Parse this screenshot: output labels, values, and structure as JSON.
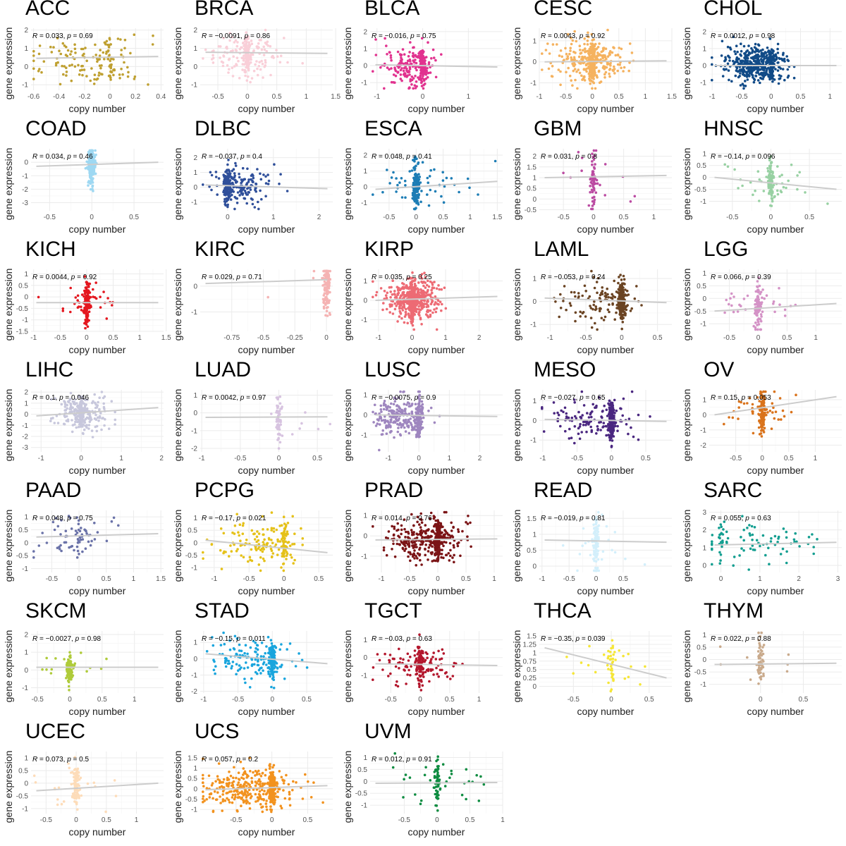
{
  "axis_labels": {
    "x": "copy number",
    "y": "gene expression"
  },
  "chart_data": [
    {
      "type": "scatter",
      "title": "ACC",
      "R": "0.033",
      "p": "0.69",
      "color": "#bfa031",
      "xlim": [
        -0.62,
        0.42
      ],
      "ylim": [
        -1.3,
        2.1
      ],
      "xticks": [
        -0.6,
        -0.4,
        -0.2,
        0.0,
        0.2,
        0.4
      ],
      "yticks": [
        -1,
        0,
        1,
        2
      ],
      "fit": [
        0.45,
        0.55
      ],
      "n": 150,
      "xmode": "spread",
      "xc": -0.2,
      "xs": 0.22,
      "ym": 0.4,
      "ys": 0.65,
      "vline": 0,
      "vfrac": 0.2
    },
    {
      "type": "scatter",
      "title": "BRCA",
      "R": "-0.0091",
      "p": "0.86",
      "color": "#f9cfd8",
      "xlim": [
        -0.8,
        1.45
      ],
      "ylim": [
        -1.3,
        2.1
      ],
      "xticks": [
        -0.5,
        0.0,
        0.5,
        1.0,
        1.5
      ],
      "yticks": [
        -1,
        0,
        1,
        2
      ],
      "fit": [
        0.78,
        0.72
      ],
      "n": 220,
      "xmode": "spread",
      "xc": 0.0,
      "xs": 0.3,
      "ym": 0.6,
      "ys": 0.55,
      "vline": 0,
      "vfrac": 0.3
    },
    {
      "type": "scatter",
      "title": "BLCA",
      "R": "-0.016",
      "p": "0.75",
      "color": "#e1338f",
      "xlim": [
        -1.15,
        1.75
      ],
      "ylim": [
        -1.45,
        2.2
      ],
      "xticks": [
        -1,
        0,
        1
      ],
      "yticks": [
        -1,
        0,
        1,
        2
      ],
      "fit": [
        0.05,
        -0.08
      ],
      "n": 260,
      "xmode": "spread",
      "xc": -0.3,
      "xs": 0.3,
      "ym": 0.0,
      "ys": 0.55,
      "vline": 0,
      "vfrac": 0.4
    },
    {
      "type": "scatter",
      "title": "CESC",
      "R": "0.0043",
      "p": "0.92",
      "color": "#f5b25f",
      "xlim": [
        -1.0,
        1.5
      ],
      "ylim": [
        -1.35,
        1.6
      ],
      "xticks": [
        -1.0,
        -0.5,
        0.0,
        0.5,
        1.0,
        1.5
      ],
      "yticks": [
        -1,
        0,
        1
      ],
      "fit": [
        0.0,
        0.05
      ],
      "n": 380,
      "xmode": "spread",
      "xc": -0.05,
      "xs": 0.35,
      "ym": 0.0,
      "ys": 0.5,
      "vline": 0,
      "vfrac": 0.3
    },
    {
      "type": "scatter",
      "title": "CHOL",
      "R": "0.0012",
      "p": "0.98",
      "color": "#104a87",
      "xlim": [
        -1.05,
        1.2
      ],
      "ylim": [
        -1.45,
        2.2
      ],
      "xticks": [
        -1.0,
        -0.5,
        0.0,
        0.5,
        1.0
      ],
      "yticks": [
        -1,
        0,
        1,
        2
      ],
      "fit": [
        0.0,
        0.0
      ],
      "n": 480,
      "xmode": "spread",
      "xc": -0.3,
      "xs": 0.28,
      "ym": 0.1,
      "ys": 0.5,
      "vline": 0,
      "vfrac": 0.2
    },
    {
      "type": "scatter",
      "title": "COAD",
      "R": "0.034",
      "p": "0.46",
      "color": "#9ed8f2",
      "xlim": [
        -0.72,
        0.85
      ],
      "ylim": [
        -3.6,
        1.0
      ],
      "xticks": [
        -0.5,
        0.0,
        0.5
      ],
      "yticks": [
        -3,
        -2,
        -1,
        0
      ],
      "fit": [
        -0.3,
        -0.0
      ],
      "n": 200,
      "xmode": "vline",
      "xc": 0,
      "xs": 0.03,
      "ym": -0.2,
      "ys": 0.7,
      "vline": 0,
      "vfrac": 0.85
    },
    {
      "type": "scatter",
      "title": "DLBC",
      "R": "-0.037",
      "p": "0.4",
      "color": "#2f4f9a",
      "xlim": [
        -0.6,
        2.3
      ],
      "ylim": [
        -1.6,
        2.6
      ],
      "xticks": [
        0,
        1,
        2
      ],
      "yticks": [
        -1,
        0,
        1,
        2
      ],
      "fit": [
        0.15,
        -0.1
      ],
      "n": 260,
      "xmode": "spread",
      "xc": 0.3,
      "xs": 0.3,
      "ym": 0.1,
      "ys": 0.6,
      "vline": 0,
      "vfrac": 0.4
    },
    {
      "type": "scatter",
      "title": "ESCA",
      "R": "0.048",
      "p": "0.41",
      "color": "#1d7db5",
      "xlim": [
        -0.85,
        1.6
      ],
      "ylim": [
        -1.5,
        2.4
      ],
      "xticks": [
        -0.5,
        0.0,
        0.5,
        1.0,
        1.5
      ],
      "yticks": [
        -1,
        0,
        1,
        2
      ],
      "fit": [
        -0.15,
        0.35
      ],
      "n": 190,
      "xmode": "vline",
      "xc": 0,
      "xs": 0.5,
      "ym": 0.1,
      "ys": 0.7,
      "vline": 0,
      "vfrac": 0.75
    },
    {
      "type": "scatter",
      "title": "GBM",
      "R": "0.031",
      "p": "0.8",
      "color": "#bb4ba2",
      "xlim": [
        -0.9,
        1.3
      ],
      "ylim": [
        -0.55,
        2.35
      ],
      "xticks": [
        -0.5,
        0.0,
        0.5,
        1.0
      ],
      "yticks": [
        -0.5,
        0.0,
        0.5,
        1.0,
        1.5,
        2.0
      ],
      "fit": [
        1.0,
        1.1
      ],
      "n": 70,
      "xmode": "vline",
      "xc": 0,
      "xs": 0.5,
      "ym": 0.9,
      "ys": 0.6,
      "vline": 0,
      "vfrac": 0.8
    },
    {
      "type": "scatter",
      "title": "HNSC",
      "R": "-0.14",
      "p": "0.096",
      "color": "#98d1a3",
      "xlim": [
        -0.8,
        0.92
      ],
      "ylim": [
        -1.4,
        1.2
      ],
      "xticks": [
        -0.5,
        0.0,
        0.5
      ],
      "yticks": [
        -1.0,
        -0.5,
        0.0,
        0.5,
        1.0
      ],
      "fit": [
        0.0,
        -0.5
      ],
      "n": 140,
      "xmode": "vline",
      "xc": 0,
      "xs": 0.3,
      "ym": -0.15,
      "ys": 0.45,
      "vline": 0,
      "vfrac": 0.7
    },
    {
      "type": "scatter",
      "title": "KICH",
      "R": "0.0044",
      "p": "0.92",
      "color": "#e4171f",
      "xlim": [
        -1.05,
        1.45
      ],
      "ylim": [
        -1.5,
        1.2
      ],
      "xticks": [
        -1.0,
        -0.5,
        0.0,
        0.5,
        1.0,
        1.5
      ],
      "yticks": [
        -1.5,
        -1.0,
        -0.5,
        0.0,
        0.5,
        1.0
      ],
      "fit": [
        -0.25,
        -0.25
      ],
      "n": 170,
      "xmode": "vline",
      "xc": 0,
      "xs": 0.35,
      "ym": -0.25,
      "ys": 0.45,
      "vline": 0,
      "vfrac": 0.8
    },
    {
      "type": "scatter",
      "title": "KIRC",
      "R": "0.029",
      "p": "0.71",
      "color": "#f5b3b3",
      "xlim": [
        -1.0,
        0.05
      ],
      "ylim": [
        -1.75,
        0.65
      ],
      "xticks": [
        -0.75,
        -0.5,
        -0.25,
        0.0
      ],
      "yticks": [
        -1,
        0
      ],
      "fit": [
        0.1,
        0.25
      ],
      "n": 120,
      "xmode": "vline",
      "xc": 0,
      "xs": 0.3,
      "ym": 0.0,
      "ys": 0.5,
      "vline": 0,
      "vfrac": 0.92
    },
    {
      "type": "scatter",
      "title": "KIRP",
      "R": "0.035",
      "p": "0.25",
      "color": "#ed6b74",
      "xlim": [
        -1.25,
        2.7
      ],
      "ylim": [
        -1.6,
        1.6
      ],
      "xticks": [
        -1,
        0,
        1,
        2
      ],
      "yticks": [
        -1,
        0,
        1
      ],
      "fit": [
        0.0,
        0.2
      ],
      "n": 600,
      "xmode": "spread",
      "xc": 0.0,
      "xs": 0.4,
      "ym": 0.05,
      "ys": 0.5,
      "vline": 0,
      "vfrac": 0.3
    },
    {
      "type": "scatter",
      "title": "LAML",
      "R": "-0.053",
      "p": "0.24",
      "color": "#6b4423",
      "xlim": [
        -1.15,
        0.7
      ],
      "ylim": [
        -1.3,
        1.4
      ],
      "xticks": [
        -1.0,
        -0.5,
        0.0,
        0.5
      ],
      "yticks": [
        -1,
        0,
        1
      ],
      "fit": [
        0.15,
        -0.05
      ],
      "n": 300,
      "xmode": "vline",
      "xc": -0.3,
      "xs": 0.3,
      "ym": 0.0,
      "ys": 0.45,
      "vline": 0,
      "vfrac": 0.6
    },
    {
      "type": "scatter",
      "title": "LGG",
      "R": "0.066",
      "p": "0.39",
      "color": "#d492c6",
      "xlim": [
        -0.85,
        1.45
      ],
      "ylim": [
        -1.3,
        1.15
      ],
      "xticks": [
        -0.5,
        0.0,
        0.5,
        1.0
      ],
      "yticks": [
        -1.0,
        -0.5,
        0.0,
        0.5,
        1.0
      ],
      "fit": [
        -0.5,
        -0.2
      ],
      "n": 130,
      "xmode": "vline",
      "xc": 0,
      "xs": 0.3,
      "ym": -0.3,
      "ys": 0.45,
      "vline": 0,
      "vfrac": 0.75
    },
    {
      "type": "scatter",
      "title": "LIHC",
      "R": "0.1",
      "p": "0.046",
      "color": "#c7c7dc",
      "xlim": [
        -1.25,
        2.05
      ],
      "ylim": [
        -3.4,
        2.2
      ],
      "xticks": [
        -1,
        0,
        1,
        2
      ],
      "yticks": [
        -3,
        -2,
        -1,
        0,
        1,
        2
      ],
      "fit": [
        -0.15,
        0.6
      ],
      "n": 300,
      "xmode": "spread",
      "xc": 0.0,
      "xs": 0.35,
      "ym": 0.1,
      "ys": 0.8,
      "vline": 0,
      "vfrac": 0.4
    },
    {
      "type": "scatter",
      "title": "LUAD",
      "R": "0.0042",
      "p": "0.97",
      "color": "#d7c3e0",
      "xlim": [
        -1.02,
        0.7
      ],
      "ylim": [
        -2.2,
        1.3
      ],
      "xticks": [
        -1.0,
        -0.5,
        0.0,
        0.5
      ],
      "yticks": [
        -2,
        -1,
        0,
        1
      ],
      "fit": [
        -0.25,
        -0.22
      ],
      "n": 70,
      "xmode": "vline",
      "xc": 0,
      "xs": 0.3,
      "ym": -0.3,
      "ys": 0.7,
      "vline": 0,
      "vfrac": 0.9
    },
    {
      "type": "scatter",
      "title": "LUSC",
      "R": "-0.0075",
      "p": "0.9",
      "color": "#9e86bf",
      "xlim": [
        -1.6,
        2.75
      ],
      "ylim": [
        -1.85,
        1.25
      ],
      "xticks": [
        -1,
        0,
        1,
        2
      ],
      "yticks": [
        -1,
        0,
        1
      ],
      "fit": [
        0.0,
        -0.08
      ],
      "n": 320,
      "xmode": "spread",
      "xc": -0.6,
      "xs": 0.45,
      "ym": -0.1,
      "ys": 0.5,
      "vline": 0,
      "vfrac": 0.35
    },
    {
      "type": "scatter",
      "title": "MESO",
      "R": "-0.027",
      "p": "0.65",
      "color": "#4a2780",
      "xlim": [
        -1.05,
        0.88
      ],
      "ylim": [
        -1.6,
        1.55
      ],
      "xticks": [
        -1.0,
        -0.5,
        0.0,
        0.5
      ],
      "yticks": [
        -1,
        0,
        1
      ],
      "fit": [
        0.05,
        -0.05
      ],
      "n": 280,
      "xmode": "vline",
      "xc": -0.3,
      "xs": 0.35,
      "ym": 0.0,
      "ys": 0.5,
      "vline": 0,
      "vfrac": 0.6
    },
    {
      "type": "scatter",
      "title": "OV",
      "R": "0.15",
      "p": "0.053",
      "color": "#d9731c",
      "xlim": [
        -1.0,
        1.5
      ],
      "ylim": [
        -2.45,
        1.65
      ],
      "xticks": [
        -0.5,
        0.0,
        0.5,
        1.0
      ],
      "yticks": [
        -2,
        -1,
        0,
        1
      ],
      "fit": [
        0.0,
        1.2
      ],
      "n": 140,
      "xmode": "vline",
      "xc": 0,
      "xs": 0.35,
      "ym": 0.2,
      "ys": 0.7,
      "vline": 0,
      "vfrac": 0.7
    },
    {
      "type": "scatter",
      "title": "PAAD",
      "R": "0.048",
      "p": "0.75",
      "color": "#6a72a8",
      "xlim": [
        -0.88,
        1.55
      ],
      "ylim": [
        -1.15,
        1.25
      ],
      "xticks": [
        -0.5,
        0.0,
        0.5,
        1.0,
        1.5
      ],
      "yticks": [
        -1.0,
        -0.5,
        0.0,
        0.5,
        1.0
      ],
      "fit": [
        0.22,
        0.35
      ],
      "n": 70,
      "xmode": "spread",
      "xc": -0.1,
      "xs": 0.35,
      "ym": 0.25,
      "ys": 0.45,
      "vline": 0,
      "vfrac": 0.2
    },
    {
      "type": "scatter",
      "title": "PCPG",
      "R": "-0.17",
      "p": "0.021",
      "color": "#e5c119",
      "xlim": [
        -1.2,
        0.7
      ],
      "ylim": [
        -1.2,
        1.3
      ],
      "xticks": [
        -1.0,
        -0.5,
        0.0,
        0.5
      ],
      "yticks": [
        -1.0,
        -0.5,
        0.0,
        0.5,
        1.0
      ],
      "fit": [
        0.1,
        -0.4
      ],
      "n": 190,
      "xmode": "spread",
      "xc": -0.35,
      "xs": 0.3,
      "ym": -0.05,
      "ys": 0.45,
      "vline": 0,
      "vfrac": 0.3
    },
    {
      "type": "scatter",
      "title": "PRAD",
      "R": "0.014",
      "p": "0.76",
      "color": "#7b1416",
      "xlim": [
        -1.2,
        1.15
      ],
      "ylim": [
        -1.8,
        1.25
      ],
      "xticks": [
        -1.0,
        -0.5,
        0.0,
        0.5,
        1.0
      ],
      "yticks": [
        -1,
        0,
        1
      ],
      "fit": [
        -0.2,
        -0.15
      ],
      "n": 420,
      "xmode": "spread",
      "xc": -0.2,
      "xs": 0.35,
      "ym": -0.15,
      "ys": 0.5,
      "vline": 0,
      "vfrac": 0.35
    },
    {
      "type": "scatter",
      "title": "READ",
      "R": "-0.019",
      "p": "0.81",
      "color": "#d3effb",
      "xlim": [
        -1.05,
        1.4
      ],
      "ylim": [
        -0.2,
        1.75
      ],
      "xticks": [
        -1.0,
        -0.5,
        0.0,
        0.5
      ],
      "yticks": [
        0.0,
        0.5,
        1.0,
        1.5
      ],
      "fit": [
        0.82,
        0.75
      ],
      "n": 110,
      "xmode": "vline",
      "xc": 0,
      "xs": 0.3,
      "ym": 0.7,
      "ys": 0.45,
      "vline": 0,
      "vfrac": 0.85
    },
    {
      "type": "scatter",
      "title": "SARC",
      "R": "0.055",
      "p": "0.63",
      "color": "#139e90",
      "xlim": [
        -0.3,
        3.1
      ],
      "ylim": [
        -0.4,
        3.1
      ],
      "xticks": [
        0,
        1,
        2,
        3
      ],
      "yticks": [
        0,
        1,
        2,
        3
      ],
      "fit": [
        1.15,
        1.3
      ],
      "n": 90,
      "xmode": "spread",
      "xc": 1.0,
      "xs": 0.8,
      "ym": 1.25,
      "ys": 0.6,
      "vline": 0,
      "vfrac": 0.3
    },
    {
      "type": "scatter",
      "title": "SKCM",
      "R": "-0.0027",
      "p": "0.98",
      "color": "#afcb3a",
      "xlim": [
        -0.6,
        1.45
      ],
      "ylim": [
        -1.3,
        2.2
      ],
      "xticks": [
        -0.5,
        0.0,
        0.5,
        1.0
      ],
      "yticks": [
        -1,
        0,
        1,
        2
      ],
      "fit": [
        0.15,
        0.15
      ],
      "n": 90,
      "xmode": "vline",
      "xc": 0,
      "xs": 0.3,
      "ym": 0.1,
      "ys": 0.45,
      "vline": 0,
      "vfrac": 0.85
    },
    {
      "type": "scatter",
      "title": "STAD",
      "R": "-0.15",
      "p": "0.011",
      "color": "#19a5dd",
      "xlim": [
        -1.05,
        0.88
      ],
      "ylim": [
        -2.1,
        1.7
      ],
      "xticks": [
        -1.0,
        -0.5,
        0.0,
        0.5
      ],
      "yticks": [
        -2,
        -1,
        0,
        1
      ],
      "fit": [
        0.3,
        -0.3
      ],
      "n": 260,
      "xmode": "vline",
      "xc": -0.3,
      "xs": 0.35,
      "ym": 0.0,
      "ys": 0.6,
      "vline": 0,
      "vfrac": 0.5
    },
    {
      "type": "scatter",
      "title": "TGCT",
      "R": "-0.03",
      "p": "0.63",
      "color": "#b3162c",
      "xlim": [
        -0.85,
        1.4
      ],
      "ylim": [
        -2.0,
        1.5
      ],
      "xticks": [
        -0.5,
        0.0,
        0.5,
        1.0
      ],
      "yticks": [
        -1,
        0,
        1
      ],
      "fit": [
        -0.35,
        -0.45
      ],
      "n": 180,
      "xmode": "spread",
      "xc": 0.0,
      "xs": 0.35,
      "ym": -0.4,
      "ys": 0.55,
      "vline": 0,
      "vfrac": 0.45
    },
    {
      "type": "scatter",
      "title": "THCA",
      "R": "-0.35",
      "p": "0.039",
      "color": "#f5e637",
      "xlim": [
        -0.95,
        0.8
      ],
      "ylim": [
        -0.2,
        1.65
      ],
      "xticks": [
        -0.5,
        0.0,
        0.5
      ],
      "yticks": [
        0.0,
        0.25,
        0.5,
        0.75,
        1.0,
        1.25,
        1.5
      ],
      "fit": [
        1.15,
        0.25
      ],
      "n": 50,
      "xmode": "vline",
      "xc": 0,
      "xs": 0.3,
      "ym": 0.6,
      "ys": 0.35,
      "vline": 0,
      "vfrac": 0.7
    },
    {
      "type": "scatter",
      "title": "THYM",
      "R": "0.022",
      "p": "0.88",
      "color": "#c9aa8c",
      "xlim": [
        -0.6,
        0.95
      ],
      "ylim": [
        -1.35,
        1.15
      ],
      "xticks": [
        0.0,
        0.5
      ],
      "yticks": [
        -1.0,
        -0.5,
        0.0,
        0.5,
        1.0
      ],
      "fit": [
        -0.2,
        -0.15
      ],
      "n": 60,
      "xmode": "vline",
      "xc": 0,
      "xs": 0.3,
      "ym": -0.1,
      "ys": 0.5,
      "vline": 0,
      "vfrac": 0.8
    },
    {
      "type": "scatter",
      "title": "UCEC",
      "R": "0.073",
      "p": "0.5",
      "color": "#fddcb9",
      "xlim": [
        -0.75,
        1.45
      ],
      "ylim": [
        -1.2,
        1.25
      ],
      "xticks": [
        -0.5,
        0.0,
        0.5,
        1.0
      ],
      "yticks": [
        -1.0,
        -0.5,
        0.0,
        0.5,
        1.0
      ],
      "fit": [
        -0.3,
        0.0
      ],
      "n": 110,
      "xmode": "vline",
      "xc": 0,
      "xs": 0.35,
      "ym": -0.1,
      "ys": 0.45,
      "vline": 0,
      "vfrac": 0.8
    },
    {
      "type": "scatter",
      "title": "UCS",
      "R": "0.057",
      "p": "0.2",
      "color": "#f2921e",
      "xlim": [
        -1.0,
        0.85
      ],
      "ylim": [
        -1.2,
        1.8
      ],
      "xticks": [
        -0.5,
        0.0,
        0.5
      ],
      "yticks": [
        -1.0,
        -0.5,
        0.0,
        0.5,
        1.0,
        1.5
      ],
      "fit": [
        -0.05,
        0.15
      ],
      "n": 420,
      "xmode": "spread",
      "xc": -0.35,
      "xs": 0.35,
      "ym": 0.0,
      "ys": 0.5,
      "vline": 0,
      "vfrac": 0.3
    },
    {
      "type": "scatter",
      "title": "UVM",
      "R": "0.012",
      "p": "0.91",
      "color": "#0e8c41",
      "xlim": [
        -1.02,
        1.0
      ],
      "ylim": [
        -1.35,
        1.25
      ],
      "xticks": [
        -0.5,
        0.0,
        0.5,
        1.0
      ],
      "yticks": [
        -1.0,
        -0.5,
        0.0,
        0.5,
        1.0
      ],
      "fit": [
        -0.08,
        -0.05
      ],
      "n": 90,
      "xmode": "vline",
      "xc": 0,
      "xs": 0.35,
      "ym": -0.05,
      "ys": 0.5,
      "vline": 0,
      "vfrac": 0.6
    }
  ]
}
